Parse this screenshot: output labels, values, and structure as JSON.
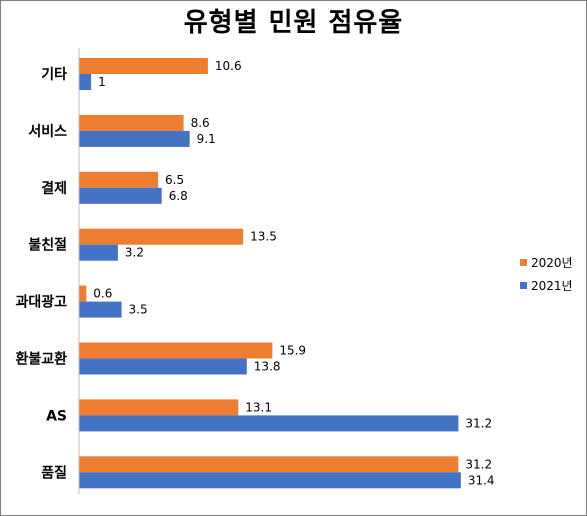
{
  "chart_data": {
    "type": "bar",
    "orientation": "horizontal",
    "title": "유형별 민원 점유율",
    "categories": [
      "기타",
      "서비스",
      "결제",
      "불친절",
      "과대광고",
      "환불교환",
      "AS",
      "품질"
    ],
    "series": [
      {
        "name": "2020년",
        "color": "#ED7D31",
        "values": [
          10.6,
          8.6,
          6.5,
          13.5,
          0.6,
          15.9,
          13.1,
          31.2
        ]
      },
      {
        "name": "2021년",
        "color": "#4472C4",
        "values": [
          1,
          9.1,
          6.8,
          3.2,
          3.5,
          13.8,
          31.2,
          31.4
        ]
      }
    ],
    "xlim": [
      0,
      35
    ],
    "grid": false,
    "legend_position": "right"
  }
}
